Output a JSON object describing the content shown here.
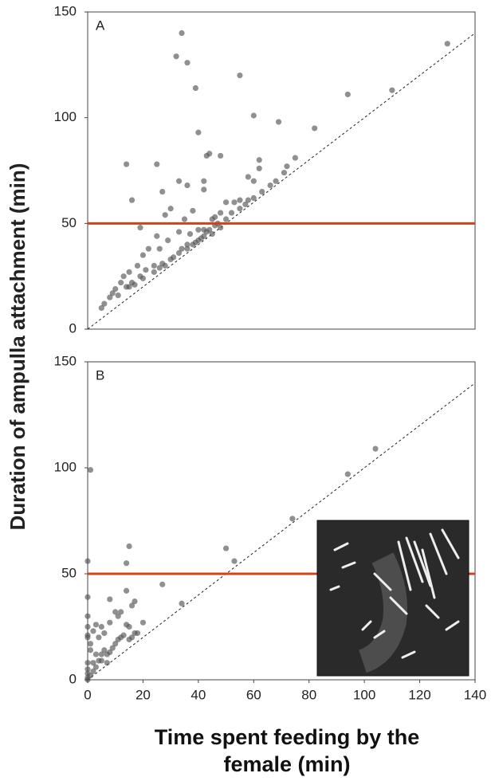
{
  "chart_data": [
    {
      "type": "scatter",
      "panel_label": "A",
      "ylabel": "Duration of ampulla attachment (min)",
      "xlim": [
        0,
        140
      ],
      "ylim": [
        0,
        150
      ],
      "yticks": [
        0,
        50,
        100,
        150
      ],
      "color": "#555555",
      "hline": 50,
      "hline_color": "#d0431a",
      "identity_line": true,
      "x": [
        130,
        110,
        94,
        82,
        69,
        60,
        55,
        36,
        34,
        32,
        39,
        40,
        14,
        25,
        16,
        19,
        44,
        43,
        48,
        33,
        42,
        36,
        42,
        27,
        62,
        62,
        72,
        75,
        58,
        60,
        53,
        55,
        58,
        60,
        63,
        66,
        68,
        71,
        50,
        48,
        45,
        46,
        35,
        38,
        30,
        28,
        25,
        22,
        20,
        18,
        15,
        13,
        12,
        10,
        8,
        6,
        5,
        9,
        14,
        16,
        19,
        21,
        24,
        27,
        30,
        33,
        36,
        38,
        40,
        42,
        44,
        46,
        47,
        50,
        52,
        55,
        57,
        45,
        42,
        20,
        17,
        15,
        11,
        24,
        26,
        28,
        31,
        34,
        36,
        39,
        41,
        43,
        29,
        26,
        33,
        37,
        40,
        48
      ],
      "values": [
        135,
        113,
        111,
        95,
        98,
        101,
        120,
        126,
        140,
        129,
        114,
        93,
        78,
        78,
        61,
        48,
        83,
        82,
        82,
        70,
        70,
        68,
        66,
        65,
        76,
        80,
        77,
        81,
        72,
        70,
        60,
        61,
        61,
        62,
        65,
        68,
        70,
        74,
        60,
        55,
        52,
        53,
        52,
        56,
        57,
        54,
        44,
        38,
        35,
        30,
        27,
        25,
        22,
        19,
        15,
        12,
        10,
        17,
        20,
        22,
        25,
        28,
        30,
        31,
        33,
        36,
        38,
        40,
        42,
        44,
        47,
        49,
        50,
        52,
        55,
        57,
        59,
        45,
        47,
        24,
        21,
        20,
        16,
        27,
        29,
        30,
        34,
        38,
        40,
        41,
        43,
        46,
        42,
        38,
        46,
        45,
        47,
        48
      ]
    },
    {
      "type": "scatter",
      "panel_label": "B",
      "xlabel": "Time spent feeding by the female (min)",
      "xlim": [
        0,
        140
      ],
      "ylim": [
        0,
        150
      ],
      "xticks": [
        0,
        20,
        40,
        60,
        80,
        100,
        120,
        140
      ],
      "yticks": [
        0,
        50,
        100,
        150
      ],
      "color": "#555555",
      "hline": 50,
      "hline_color": "#d0431a",
      "identity_line": true,
      "x": [
        104,
        94,
        74,
        50,
        53,
        34,
        27,
        15,
        14,
        14,
        16,
        1,
        0,
        0,
        0,
        0,
        0,
        0,
        1,
        1,
        0,
        0,
        0,
        0,
        0,
        1,
        2,
        3,
        4,
        5,
        6,
        7,
        8,
        9,
        10,
        11,
        12,
        13,
        15,
        16,
        17,
        18,
        8,
        5,
        2,
        3,
        8,
        10,
        12,
        14,
        15,
        3,
        5,
        7,
        2,
        4,
        6,
        11,
        20,
        17
      ],
      "values": [
        109,
        97,
        76,
        62,
        56,
        36,
        45,
        63,
        55,
        42,
        35,
        99,
        56,
        39,
        30,
        25,
        21,
        20,
        17,
        14,
        8,
        5,
        3,
        1,
        0,
        2,
        4,
        6,
        9,
        12,
        14,
        12,
        13,
        15,
        17,
        19,
        20,
        21,
        19,
        20,
        22,
        22,
        38,
        25,
        23,
        26,
        27,
        32,
        32,
        26,
        25,
        12,
        9,
        8,
        8,
        20,
        22,
        30,
        27,
        37
      ]
    }
  ]
}
